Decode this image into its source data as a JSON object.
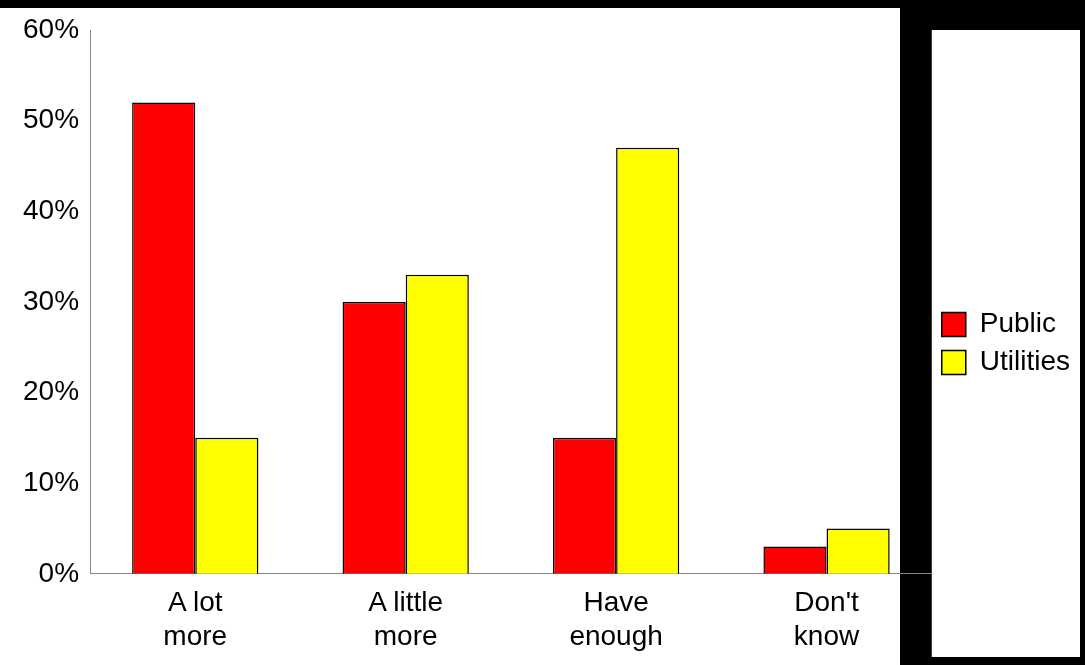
{
  "chart_data": {
    "type": "bar",
    "categories": [
      "A lot more",
      "A little more",
      "Have enough",
      "Don't know"
    ],
    "series": [
      {
        "name": "Public",
        "color": "#ff0000",
        "values": [
          52,
          30,
          15,
          3
        ]
      },
      {
        "name": "Utilities",
        "color": "#ffff00",
        "values": [
          15,
          33,
          47,
          5
        ]
      }
    ],
    "ylim": [
      0,
      60
    ],
    "yticks": [
      {
        "value": 0,
        "label": "0%"
      },
      {
        "value": 10,
        "label": "10%"
      },
      {
        "value": 20,
        "label": "20%"
      },
      {
        "value": 30,
        "label": "30%"
      },
      {
        "value": 40,
        "label": "40%"
      },
      {
        "value": 50,
        "label": "50%"
      },
      {
        "value": 60,
        "label": "60%"
      }
    ],
    "grid": false,
    "legend": "right"
  }
}
